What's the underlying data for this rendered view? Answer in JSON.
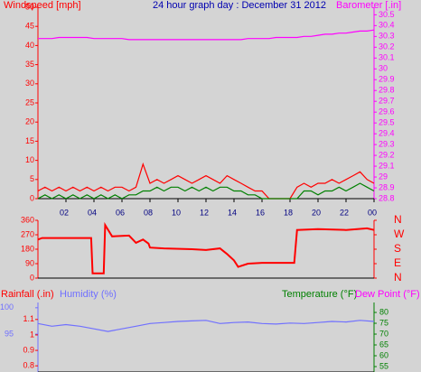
{
  "chart_data": [
    {
      "type": "line",
      "title": "24 hour graph day : December 31 2012",
      "ylabel": "Windspeed [mph]",
      "y2label": "Barometer [.in]",
      "x": [
        0,
        0.5,
        1,
        1.5,
        2,
        2.5,
        3,
        3.5,
        4,
        4.5,
        5,
        5.5,
        6,
        6.5,
        7,
        7.5,
        8,
        8.5,
        9,
        9.5,
        10,
        10.5,
        11,
        11.5,
        12,
        12.5,
        13,
        13.5,
        14,
        14.5,
        15,
        15.5,
        16,
        16.5,
        17,
        17.5,
        18,
        18.5,
        19,
        19.5,
        20,
        20.5,
        21,
        21.5,
        22,
        22.5,
        23,
        23.5,
        24
      ],
      "xlim": [
        0,
        24
      ],
      "xticks": [
        {
          "value": 2,
          "label": "02"
        },
        {
          "value": 4,
          "label": "04"
        },
        {
          "value": 6,
          "label": "06"
        },
        {
          "value": 8,
          "label": "08"
        },
        10,
        12,
        14,
        16,
        18,
        20,
        22,
        {
          "value": 24,
          "label": "00"
        }
      ],
      "ylim": [
        0,
        50
      ],
      "yticks": [
        0,
        5,
        10,
        15,
        20,
        25,
        30,
        35,
        40,
        45,
        50
      ],
      "y2lim": [
        28.8,
        30.57
      ],
      "y2ticks": [
        28.8,
        28.9,
        29,
        29.1,
        29.2,
        29.3,
        29.4,
        29.5,
        29.6,
        29.7,
        29.8,
        29.9,
        30,
        30.1,
        30.2,
        30.3,
        30.4,
        30.5
      ],
      "series": [
        {
          "color": "#ff0000",
          "values": [
            2,
            3,
            2,
            3,
            2,
            3,
            2,
            3,
            2,
            3,
            2,
            3,
            3,
            2,
            3,
            9,
            4,
            5,
            4,
            5,
            6,
            5,
            4,
            5,
            6,
            5,
            4,
            6,
            5,
            4,
            3,
            2,
            2,
            0,
            0,
            0,
            0,
            3,
            4,
            3,
            4,
            4,
            5,
            4,
            5,
            6,
            7,
            5,
            4
          ]
        },
        {
          "color": "#008000",
          "values": [
            0,
            1,
            0,
            1,
            0,
            1,
            0,
            1,
            0,
            1,
            0,
            1,
            0,
            1,
            1,
            2,
            2,
            3,
            2,
            3,
            3,
            2,
            3,
            2,
            3,
            2,
            3,
            3,
            2,
            2,
            1,
            1,
            0,
            0,
            0,
            0,
            0,
            0,
            2,
            2,
            1,
            2,
            2,
            3,
            2,
            3,
            4,
            3,
            2
          ]
        },
        {
          "color": "#ff00ff",
          "axis": "y2",
          "values": [
            30.28,
            30.28,
            30.28,
            30.29,
            30.29,
            30.29,
            30.29,
            30.29,
            30.28,
            30.28,
            30.28,
            30.28,
            30.28,
            30.27,
            30.27,
            30.27,
            30.27,
            30.27,
            30.27,
            30.27,
            30.27,
            30.27,
            30.27,
            30.27,
            30.27,
            30.27,
            30.27,
            30.27,
            30.27,
            30.27,
            30.28,
            30.28,
            30.28,
            30.28,
            30.29,
            30.29,
            30.29,
            30.29,
            30.3,
            30.3,
            30.31,
            30.32,
            30.32,
            30.33,
            30.33,
            30.34,
            30.35,
            30.35,
            30.36
          ]
        }
      ]
    },
    {
      "type": "line",
      "x": [
        0,
        0.3,
        3.8,
        3.9,
        4.7,
        4.8,
        5.3,
        6.5,
        7,
        7.5,
        7.9,
        8,
        9,
        11,
        12,
        13,
        13.5,
        14,
        14.3,
        15,
        16,
        18.3,
        18.5,
        20,
        22,
        23.5,
        24
      ],
      "xlim": [
        0,
        24
      ],
      "ylim": [
        0,
        360
      ],
      "yticks": [
        0,
        90,
        180,
        270,
        360
      ],
      "y2lim": [
        0,
        360
      ],
      "y2ticks": [
        {
          "value": 360,
          "label": "N"
        },
        {
          "value": 270,
          "label": "W"
        },
        {
          "value": 180,
          "label": "S"
        },
        {
          "value": 90,
          "label": "E"
        },
        {
          "value": 0,
          "label": "N"
        }
      ],
      "series": [
        {
          "color": "#ff0000",
          "values": [
            240,
            250,
            250,
            30,
            30,
            330,
            260,
            265,
            220,
            240,
            215,
            190,
            185,
            180,
            175,
            185,
            150,
            110,
            70,
            90,
            95,
            95,
            300,
            305,
            300,
            310,
            300
          ]
        }
      ]
    },
    {
      "type": "line",
      "ylabel": "Humidity (%)",
      "y3label": "Rainfall (.in)",
      "y2label": "Temperature (°F)",
      "y4label": "Dew Point (°F)",
      "x": [
        0,
        1,
        2,
        3,
        4,
        5,
        6,
        7,
        8,
        9,
        10,
        11,
        12,
        13,
        14,
        15,
        16,
        17,
        18,
        19,
        20,
        21,
        22,
        23,
        24
      ],
      "xlim": [
        0,
        24
      ],
      "ylim": [
        87.8,
        101
      ],
      "yticks": [
        95,
        100
      ],
      "y3lim": [
        0.76,
        1.21
      ],
      "y3ticks": [
        0.8,
        0.9,
        1,
        1.1
      ],
      "y2lim": [
        52.5,
        84.6
      ],
      "y2ticks": [
        55,
        60,
        65,
        70,
        75,
        80
      ],
      "series": [
        {
          "color": "#7070ff",
          "values": [
            97,
            96.5,
            96.8,
            96.5,
            96,
            95.5,
            96,
            96.5,
            97,
            97.2,
            97.4,
            97.5,
            97.6,
            97,
            97.2,
            97.3,
            97,
            96.9,
            97.1,
            97,
            97.2,
            97.4,
            97.3,
            97.6,
            97.4
          ]
        }
      ]
    }
  ]
}
